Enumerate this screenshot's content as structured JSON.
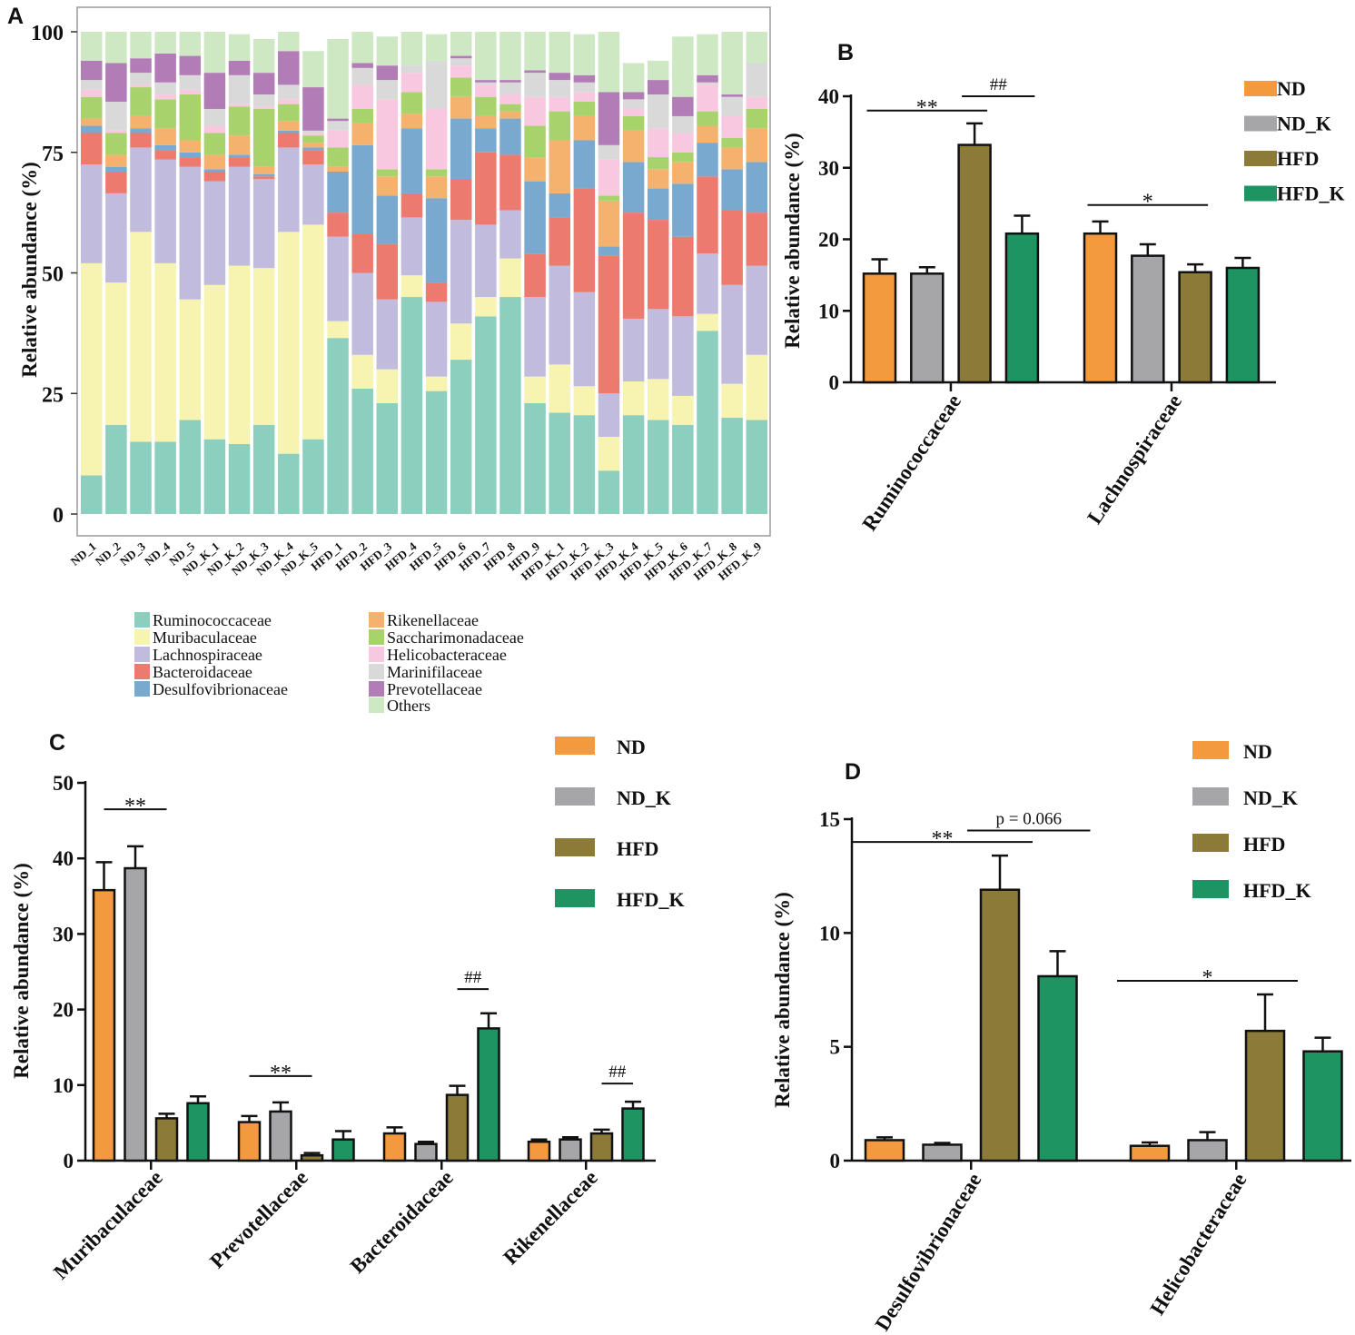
{
  "figure": {
    "colors": {
      "Ruminococcaceae": "#8ccfbf",
      "Muribaculaceae": "#f7f4b2",
      "Lachnospiraceae": "#c1bbde",
      "Bacteroidaceae": "#ec7a6f",
      "Desulfovibrionaceae": "#79a9cf",
      "Rikenellaceae": "#f5b26e",
      "Saccharimonadaceae": "#a8d26b",
      "Helicobacteraceae": "#f7c8df",
      "Marinifilaceae": "#d9d9d9",
      "Prevotellaceae": "#b27cb6",
      "Others": "#cde8c3",
      "ND": "#f39a3f",
      "ND_K": "#a6a5a8",
      "HFD": "#8b7a38",
      "HFD_K": "#1f9463"
    }
  },
  "chart_data": [
    {
      "panel": "A",
      "type": "bar",
      "stacked": true,
      "ylabel": "Relative abundance (%)",
      "ylim": [
        0,
        100
      ],
      "yticks": [
        "0",
        "25",
        "50",
        "75",
        "100"
      ],
      "categories": [
        "ND_1",
        "ND_2",
        "ND_3",
        "ND_4",
        "ND_5",
        "ND_K_1",
        "ND_K_2",
        "ND_K_3",
        "ND_K_4",
        "ND_K_5",
        "HFD_1",
        "HFD_2",
        "HFD_3",
        "HFD_4",
        "HFD_5",
        "HFD_6",
        "HFD_7",
        "HFD_8",
        "HFD_9",
        "HFD_K_1",
        "HFD_K_2",
        "HFD_K_3",
        "HFD_K_4",
        "HFD_K_5",
        "HFD_K_6",
        "HFD_K_7",
        "HFD_K_8",
        "HFD_K_9"
      ],
      "legend": [
        "Ruminococcaceae",
        "Muribaculaceae",
        "Lachnospiraceae",
        "Bacteroidaceae",
        "Desulfovibrionaceae",
        "Rikenellaceae",
        "Saccharimonadaceae",
        "Helicobacteraceae",
        "Marinifilaceae",
        "Prevotellaceae",
        "Others"
      ],
      "series": [
        {
          "name": "Ruminococcaceae",
          "values": [
            8,
            18.5,
            15,
            15,
            19.5,
            15.5,
            14.5,
            18.5,
            12.5,
            15.5,
            36.5,
            26,
            23,
            45,
            25.5,
            32,
            41,
            45,
            23,
            21,
            20.5,
            9,
            20.5,
            19.5,
            18.5,
            38,
            20,
            19.5
          ]
        },
        {
          "name": "Muribaculaceae",
          "values": [
            44,
            29.5,
            43.5,
            37,
            25,
            32,
            37,
            32.5,
            46,
            44.5,
            3.5,
            7,
            7,
            4.5,
            3,
            7.5,
            4,
            8,
            5.5,
            10,
            6,
            7,
            7,
            8.5,
            6,
            3.5,
            7,
            13.5
          ]
        },
        {
          "name": "Lachnospiraceae",
          "values": [
            20.5,
            18.5,
            17.5,
            21.5,
            27.5,
            21.5,
            20.5,
            18.5,
            17.5,
            12.5,
            17.5,
            17,
            14.5,
            12,
            15.5,
            21.5,
            15,
            10,
            16.5,
            20.5,
            19.5,
            9,
            13,
            14.5,
            16.5,
            12.5,
            20.5,
            18.5
          ]
        },
        {
          "name": "Bacteroidaceae",
          "values": [
            6.5,
            4.5,
            3,
            2,
            2,
            2,
            2,
            0.5,
            3,
            3,
            5,
            8,
            11.5,
            5,
            4,
            8.5,
            15,
            11.5,
            9,
            10,
            21.5,
            28.5,
            22,
            18.5,
            16.5,
            16,
            15.5,
            11
          ]
        },
        {
          "name": "Desulfovibrionaceae",
          "values": [
            1.5,
            1,
            1,
            1,
            1,
            0.5,
            0.5,
            0.5,
            0.5,
            0.5,
            8.5,
            18.5,
            10,
            13.5,
            17.5,
            12.5,
            5,
            7.5,
            15,
            5,
            10,
            2,
            10.5,
            6.5,
            11,
            7,
            8.5,
            10.5
          ]
        },
        {
          "name": "Rikenellaceae",
          "values": [
            1.5,
            2.5,
            2.5,
            3.5,
            2.5,
            3,
            4,
            1.5,
            2,
            1,
            1,
            4.5,
            4,
            3,
            4.5,
            4.5,
            2.5,
            1.5,
            5,
            11,
            5,
            9.5,
            6.5,
            4,
            4.5,
            3.5,
            4.5,
            7
          ]
        },
        {
          "name": "Saccharimonadaceae",
          "values": [
            4.5,
            4.5,
            6,
            6,
            9.5,
            4.5,
            6,
            12,
            3.5,
            1.5,
            4,
            3,
            1.5,
            4.5,
            1.5,
            4,
            4,
            1.5,
            6.5,
            6,
            3,
            1,
            3,
            2.5,
            2,
            3,
            2,
            4
          ]
        },
        {
          "name": "Helicobacteraceae",
          "values": [
            1.5,
            0.5,
            0.5,
            1,
            1,
            1.5,
            0.5,
            0.5,
            1,
            0.5,
            3.5,
            5,
            14.5,
            4,
            12.5,
            2.5,
            2.5,
            2,
            6,
            3,
            2,
            7.5,
            1.5,
            6,
            4,
            5.5,
            4.5,
            2.5
          ]
        },
        {
          "name": "Marinifilaceae",
          "values": [
            2,
            6,
            2.5,
            2.5,
            3,
            3.5,
            6,
            2.5,
            3,
            0.5,
            2,
            3.5,
            4,
            1.5,
            10,
            1.5,
            0.5,
            2.5,
            5,
            3.5,
            2,
            3,
            2,
            7,
            3.5,
            0.5,
            4,
            7
          ]
        },
        {
          "name": "Prevotellaceae",
          "values": [
            4,
            8,
            3,
            6,
            4,
            7.5,
            3,
            4.5,
            7,
            9,
            0.5,
            1,
            3,
            0,
            0,
            0.5,
            0.5,
            0.5,
            0.5,
            1.5,
            1.5,
            11,
            1.5,
            3,
            4,
            1.5,
            0.5,
            0
          ]
        },
        {
          "name": "Others",
          "values": [
            7.9,
            7,
            5.5,
            6,
            5.5,
            8.5,
            5.5,
            7,
            5.5,
            7.5,
            16.5,
            6.5,
            6,
            7,
            5.5,
            5.5,
            10,
            10,
            8,
            8.5,
            8.5,
            12.5,
            6,
            4,
            12.5,
            8.5,
            15.5,
            6.5
          ]
        }
      ]
    },
    {
      "panel": "B",
      "type": "bar",
      "ylabel": "Relative abundance (%)",
      "ylim": [
        0,
        40
      ],
      "yticks": [
        "0",
        "10",
        "20",
        "30",
        "40"
      ],
      "categories": [
        "Ruminococcaceae",
        "Lachnospiraceae"
      ],
      "legend": [
        "ND",
        "ND_K",
        "HFD",
        "HFD_K"
      ],
      "series": [
        {
          "name": "ND",
          "values": [
            15.2,
            20.8
          ],
          "errors": [
            2.0,
            1.7
          ]
        },
        {
          "name": "ND_K",
          "values": [
            15.2,
            17.7
          ],
          "errors": [
            0.9,
            1.6
          ]
        },
        {
          "name": "HFD",
          "values": [
            33.2,
            15.4
          ],
          "errors": [
            3.0,
            1.1
          ]
        },
        {
          "name": "HFD_K",
          "values": [
            20.8,
            16.0
          ],
          "errors": [
            2.5,
            1.4
          ]
        }
      ],
      "annotations": [
        {
          "text": "**",
          "category": 0,
          "from": 0,
          "to": 2,
          "y": 38
        },
        {
          "text": "##",
          "category": 0,
          "from": 2,
          "to": 3,
          "y": 40
        },
        {
          "text": "*",
          "category": 1,
          "from": 0,
          "to": 2,
          "y": 24.8
        }
      ]
    },
    {
      "panel": "C",
      "type": "bar",
      "ylabel": "Relative abundance (%)",
      "ylim": [
        0,
        50
      ],
      "yticks": [
        "0",
        "10",
        "20",
        "30",
        "40",
        "50"
      ],
      "categories": [
        "Muribaculaceae",
        "Prevotellaceae",
        "Bacteroidaceae",
        "Rikenellaceae"
      ],
      "legend": [
        "ND",
        "ND_K",
        "HFD",
        "HFD_K"
      ],
      "series": [
        {
          "name": "ND",
          "values": [
            35.8,
            5.1,
            3.6,
            2.5
          ],
          "errors": [
            3.7,
            0.8,
            0.8,
            0.3
          ]
        },
        {
          "name": "ND_K",
          "values": [
            38.7,
            6.5,
            2.2,
            2.8
          ],
          "errors": [
            2.9,
            1.2,
            0.3,
            0.3
          ]
        },
        {
          "name": "HFD",
          "values": [
            5.6,
            0.7,
            8.7,
            3.6
          ],
          "errors": [
            0.6,
            0.3,
            1.2,
            0.5
          ]
        },
        {
          "name": "HFD_K",
          "values": [
            7.6,
            2.8,
            17.5,
            6.9
          ],
          "errors": [
            0.9,
            1.1,
            2.0,
            0.9
          ]
        }
      ],
      "annotations": [
        {
          "text": "**",
          "category": 0,
          "from": 0,
          "to": 2,
          "y": 46.5
        },
        {
          "text": "**",
          "category": 1,
          "from": 0,
          "to": 2,
          "y": 11.2
        },
        {
          "text": "##",
          "category": 2,
          "from": 2,
          "to": 3,
          "y": 22.7
        },
        {
          "text": "##",
          "category": 3,
          "from": 2,
          "to": 3,
          "y": 10.2
        }
      ]
    },
    {
      "panel": "D",
      "type": "bar",
      "ylabel": "Relative abundance (%)",
      "ylim": [
        0,
        15
      ],
      "yticks": [
        "0",
        "5",
        "10",
        "15"
      ],
      "categories": [
        "Desulfovibrionaceae",
        "Helicobacteraceae"
      ],
      "legend": [
        "ND",
        "ND_K",
        "HFD",
        "HFD_K"
      ],
      "series": [
        {
          "name": "ND",
          "values": [
            0.9,
            0.65
          ],
          "errors": [
            0.12,
            0.15
          ]
        },
        {
          "name": "ND_K",
          "values": [
            0.7,
            0.9
          ],
          "errors": [
            0.08,
            0.35
          ]
        },
        {
          "name": "HFD",
          "values": [
            11.9,
            5.7
          ],
          "errors": [
            1.5,
            1.6
          ]
        },
        {
          "name": "HFD_K",
          "values": [
            8.1,
            4.8
          ],
          "errors": [
            1.1,
            0.6
          ]
        }
      ],
      "annotations": [
        {
          "text": "**",
          "category": 0,
          "from": 0,
          "to": 2,
          "y": 14.0
        },
        {
          "text": "p = 0.066",
          "category": 0,
          "from": 2,
          "to": 3,
          "y": 14.5
        },
        {
          "text": "*",
          "category": 1,
          "from": 0,
          "to": 2,
          "y": 7.9
        }
      ]
    }
  ],
  "panel_labels": [
    "A",
    "B",
    "C",
    "D"
  ]
}
